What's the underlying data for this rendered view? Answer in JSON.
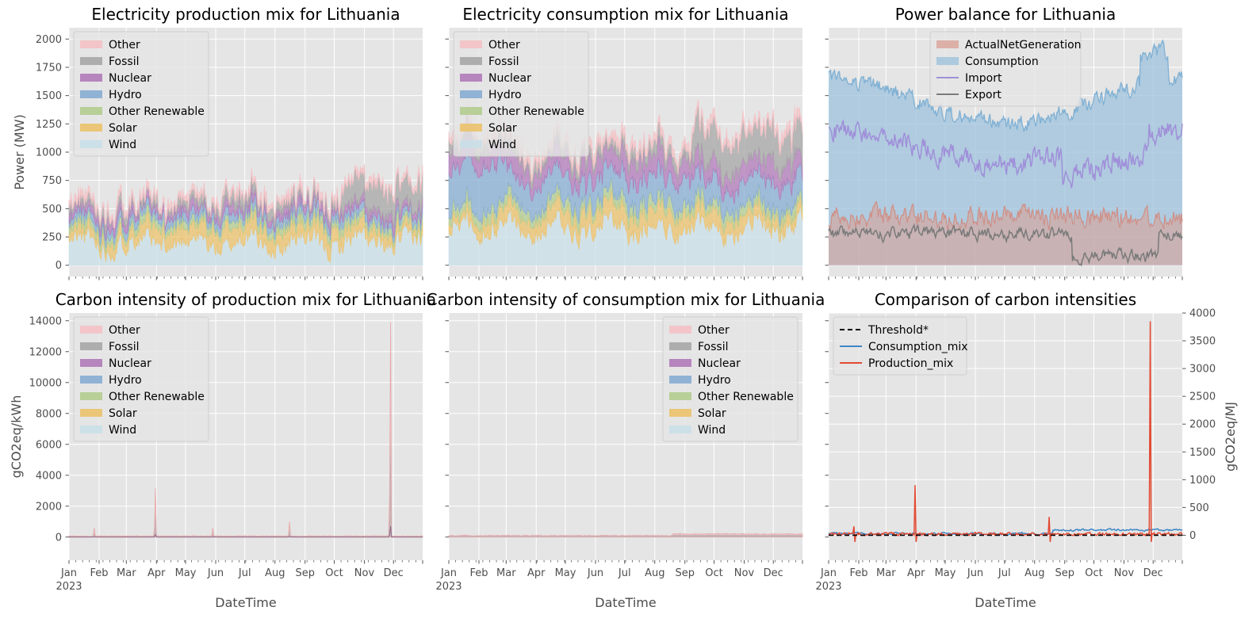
{
  "colors": {
    "Other": "#f4c1c5",
    "Fossil": "#a6a6a6",
    "Nuclear": "#b07ab9",
    "Hydro": "#86acd1",
    "Other Renewable": "#b3cc8f",
    "Solar": "#ebc26b",
    "Wind": "#c9dfe8",
    "ActualNetGeneration": "#d9a297",
    "Consumption": "#9ec2dc",
    "Import": "#9f8fd9",
    "Export": "#7a7a7a",
    "Threshold*": "#000000",
    "Consumption_mix": "#3d86c6",
    "Production_mix": "#e24a33",
    "panel_bg": "#e5e5e5",
    "grid": "#ffffff"
  },
  "x_axis": {
    "months": [
      "Jan",
      "Feb",
      "Mar",
      "Apr",
      "May",
      "Jun",
      "Jul",
      "Aug",
      "Sep",
      "Oct",
      "Nov",
      "Dec"
    ],
    "year": "2023",
    "label": "DateTime"
  },
  "chart_data": [
    {
      "type": "area",
      "title": "Electricity production mix for Lithuania",
      "ylabel": "Power (MW)",
      "ylim": [
        -100,
        2100
      ],
      "yticks": [
        "0",
        "250",
        "500",
        "750",
        "1000",
        "1250",
        "1500",
        "1750",
        "2000"
      ],
      "legend_position": "top-left",
      "series": [
        {
          "name": "Other",
          "approx_stack_top_MW": "350-1050"
        },
        {
          "name": "Fossil"
        },
        {
          "name": "Nuclear"
        },
        {
          "name": "Hydro"
        },
        {
          "name": "Other Renewable"
        },
        {
          "name": "Solar"
        },
        {
          "name": "Wind",
          "approx_values_MW": "0-450"
        }
      ],
      "x_range": [
        "2023-01-01",
        "2023-12-31"
      ]
    },
    {
      "type": "area",
      "title": "Electricity consumption mix for Lithuania",
      "ylim": [
        -100,
        2100
      ],
      "legend_position": "top-left",
      "series": [
        {
          "name": "Other",
          "approx_stack_top_MW": "900-1750"
        },
        {
          "name": "Fossil"
        },
        {
          "name": "Nuclear"
        },
        {
          "name": "Hydro"
        },
        {
          "name": "Other Renewable"
        },
        {
          "name": "Solar"
        },
        {
          "name": "Wind"
        }
      ],
      "x_range": [
        "2023-01-01",
        "2023-12-31"
      ]
    },
    {
      "type": "area",
      "title": "Power balance for Lithuania",
      "ylim": [
        -100,
        2100
      ],
      "legend_position": "top-center",
      "series": [
        {
          "name": "ActualNetGeneration",
          "approx_MW": "150-900"
        },
        {
          "name": "Consumption",
          "approx_MW": "1100-2000"
        },
        {
          "name": "Import",
          "approx_MW": "400-1450"
        },
        {
          "name": "Export",
          "approx_MW": "0-500"
        }
      ],
      "x_range": [
        "2023-01-01",
        "2023-12-31"
      ]
    },
    {
      "type": "area",
      "title": "Carbon intensity of production mix for Lithuania",
      "ylabel": "gCO2eq/kWh",
      "ylim": [
        -1500,
        14500
      ],
      "yticks": [
        "0",
        "2000",
        "4000",
        "6000",
        "8000",
        "10000",
        "12000",
        "14000"
      ],
      "legend_position": "top-left",
      "series": [
        {
          "name": "Other"
        },
        {
          "name": "Fossil"
        },
        {
          "name": "Nuclear"
        },
        {
          "name": "Hydro"
        },
        {
          "name": "Other Renewable"
        },
        {
          "name": "Solar"
        },
        {
          "name": "Wind"
        }
      ],
      "spikes": [
        {
          "x": "2023-01-27",
          "y": 600
        },
        {
          "x": "2023-03-31",
          "y": 3200
        },
        {
          "x": "2023-05-29",
          "y": 600
        },
        {
          "x": "2023-08-16",
          "y": 1000
        },
        {
          "x": "2023-11-28",
          "y": 13900
        }
      ],
      "x_range": [
        "2023-01-01",
        "2023-12-31"
      ]
    },
    {
      "type": "area",
      "title": "Carbon intensity of consumption mix for Lithuania",
      "ylim": [
        -1500,
        14500
      ],
      "legend_position": "top-right",
      "series": [
        {
          "name": "Other"
        },
        {
          "name": "Fossil"
        },
        {
          "name": "Nuclear"
        },
        {
          "name": "Hydro"
        },
        {
          "name": "Other Renewable"
        },
        {
          "name": "Solar"
        },
        {
          "name": "Wind"
        }
      ],
      "x_range": [
        "2023-01-01",
        "2023-12-31"
      ]
    },
    {
      "type": "line",
      "title": "Comparison of carbon intensities",
      "ylabel_right": "gCO2eq/MJ",
      "ylim_right": [
        -450,
        4000
      ],
      "yticks_right": [
        "0",
        "500",
        "1000",
        "1500",
        "2000",
        "2500",
        "3000",
        "3500",
        "4000"
      ],
      "legend_position": "top-left",
      "series": [
        {
          "name": "Threshold*",
          "style": "dashed",
          "value": 0
        },
        {
          "name": "Consumption_mix",
          "approx_range": "-20 to 200"
        },
        {
          "name": "Production_mix",
          "spikes": [
            {
              "x": "2023-01-27",
              "y": 160
            },
            {
              "x": "2023-03-31",
              "y": 900
            },
            {
              "x": "2023-08-16",
              "y": 330
            },
            {
              "x": "2023-11-28",
              "y": 3850
            }
          ]
        }
      ],
      "x_range": [
        "2023-01-01",
        "2023-12-31"
      ]
    }
  ]
}
